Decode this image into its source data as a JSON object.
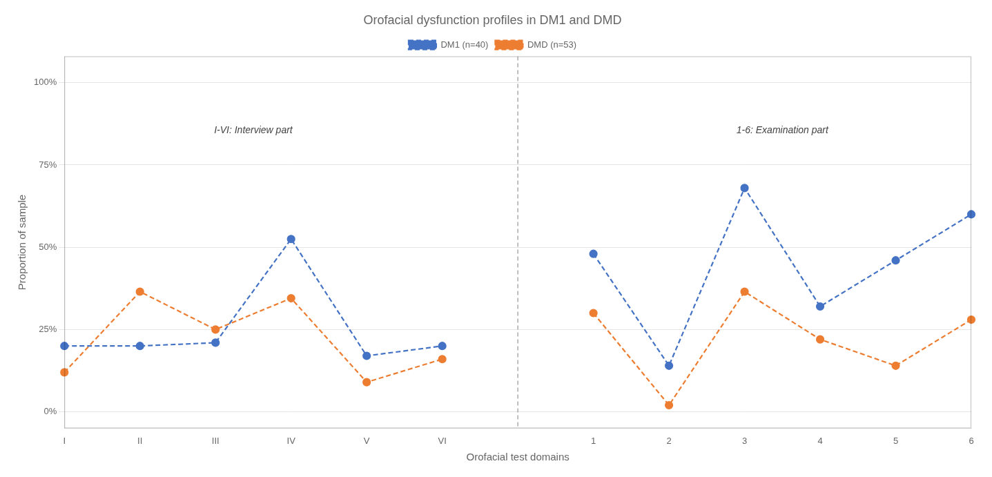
{
  "chart_data": {
    "type": "line",
    "title": "Orofacial dysfunction profiles in DM1 and DMD",
    "x_label": "Orofacial test domains",
    "y_label": "Proportion of sample",
    "categories": [
      "I",
      "II",
      "III",
      "IV",
      "V",
      "VI",
      null,
      "1",
      "2",
      "3",
      "4",
      "5",
      "6"
    ],
    "series": [
      {
        "name": "DM1 (n=40)",
        "color": "#4472C4",
        "marker": "circle",
        "line_style": "dashed",
        "values": [
          0.2,
          0.2,
          0.21,
          0.525,
          0.17,
          0.2,
          null,
          0.48,
          0.14,
          0.68,
          0.32,
          0.46,
          0.6
        ]
      },
      {
        "name": "DMD (n=53)",
        "color": "#ED7D31",
        "marker": "circle",
        "line_style": "dashed",
        "values": [
          0.12,
          0.365,
          0.25,
          0.345,
          0.09,
          0.16,
          null,
          0.3,
          0.02,
          0.365,
          0.22,
          0.14,
          0.28
        ]
      }
    ],
    "annotations": [
      "I-VI: Interview part",
      "1-6: Examination part"
    ],
    "ylim": [
      -0.05,
      1.08
    ],
    "yticks": [
      {
        "value": 0.0,
        "label": "0%"
      },
      {
        "value": 0.25,
        "label": "25%"
      },
      {
        "value": 0.5,
        "label": "50%"
      },
      {
        "value": 0.75,
        "label": "75%"
      },
      {
        "value": 1.0,
        "label": "100%"
      }
    ],
    "grid": true,
    "legend": "top"
  }
}
